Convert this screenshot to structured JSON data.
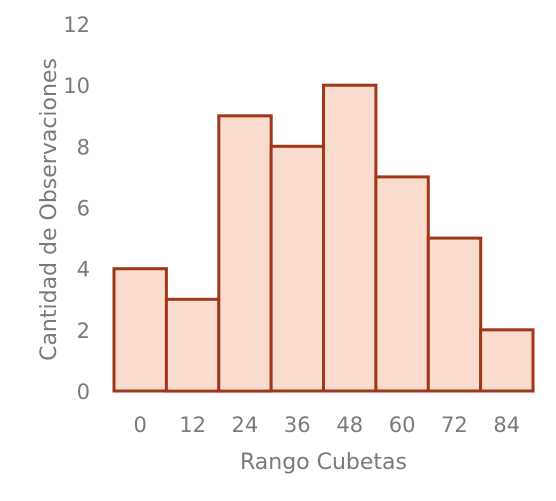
{
  "chart_data": {
    "type": "bar",
    "categories": [
      "0",
      "12",
      "24",
      "36",
      "48",
      "60",
      "72",
      "84"
    ],
    "values": [
      4,
      3,
      9,
      8,
      10,
      7,
      5,
      2
    ],
    "y_ticks": [
      "0",
      "2",
      "4",
      "6",
      "8",
      "10",
      "12"
    ],
    "ylim": [
      0,
      12
    ],
    "xlabel": "Rango Cubetas",
    "ylabel": "Cantidad de Observaciones",
    "title": "",
    "grid": false,
    "legend": "none",
    "colors": {
      "bar_fill": "#f9dccd",
      "bar_stroke": "#a0361a",
      "text": "#7a7a7a"
    }
  }
}
